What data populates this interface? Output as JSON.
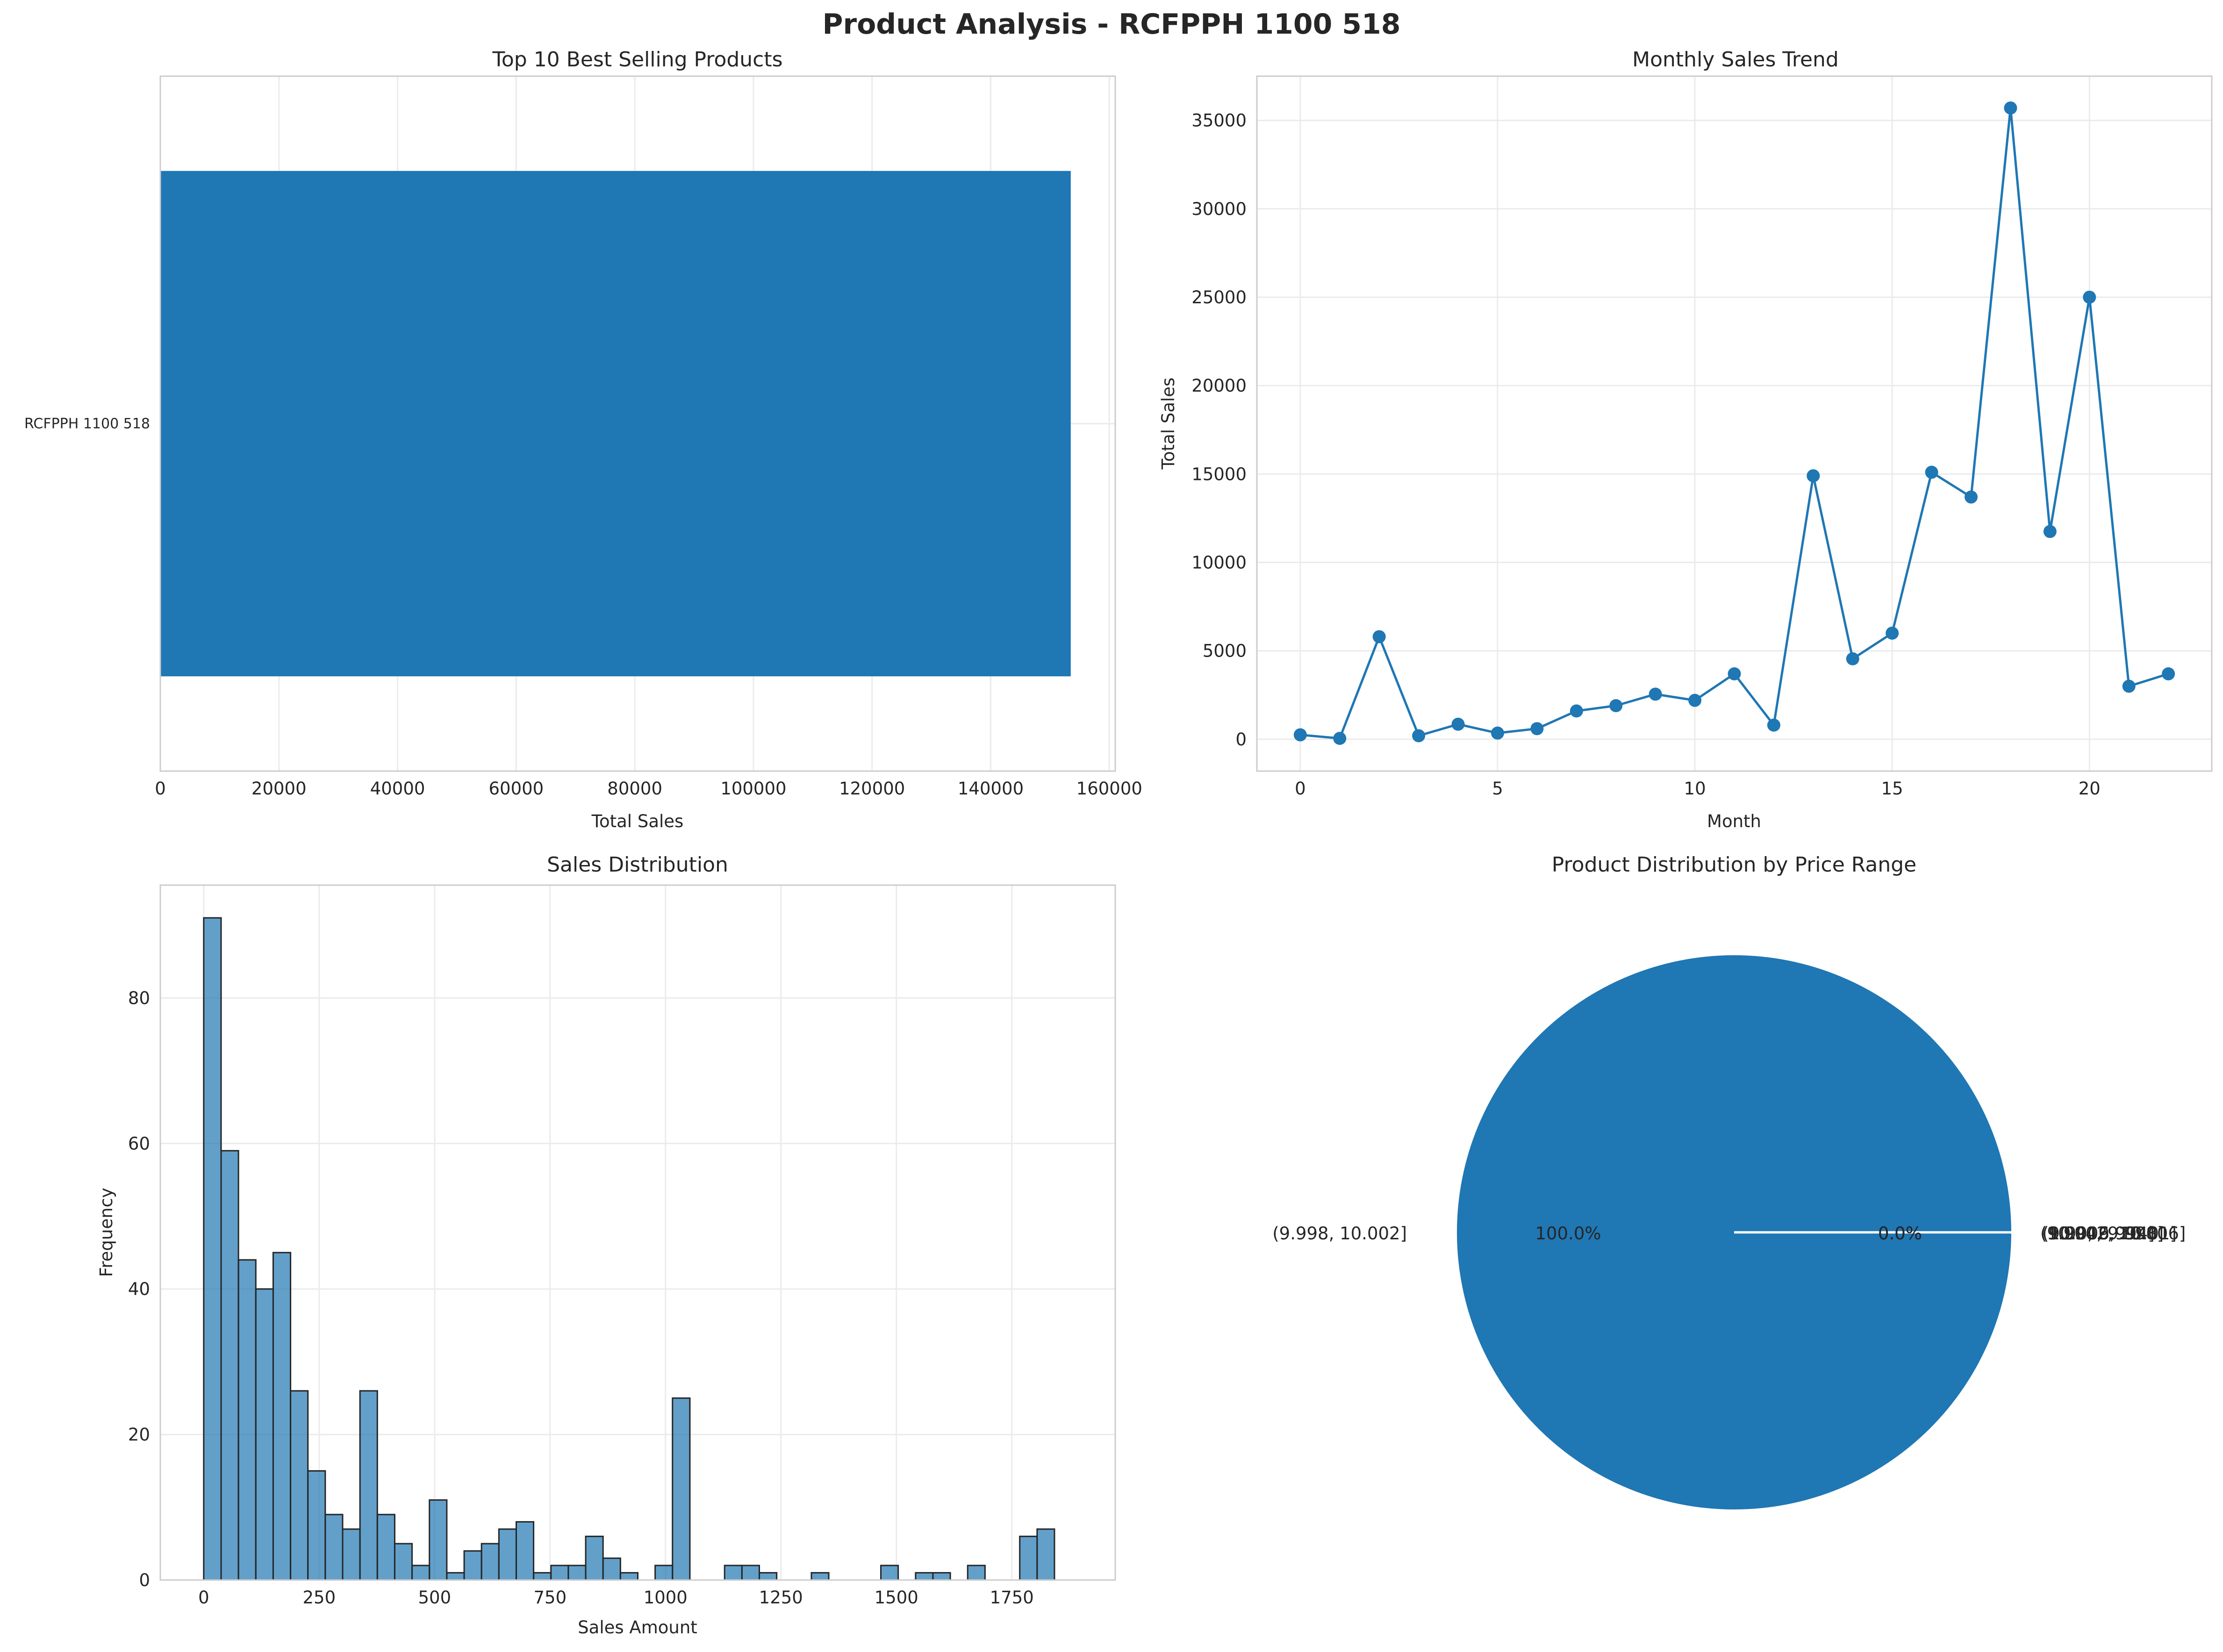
{
  "figure": {
    "title": "Product Analysis - RCFPPH 1100 518"
  },
  "chart_data": [
    {
      "type": "bar",
      "orientation": "horizontal",
      "title": "Top 10 Best Selling Products",
      "xlabel": "Total Sales",
      "ylabel": "",
      "categories": [
        "RCFPPH 1100 518"
      ],
      "values": [
        153500
      ],
      "xlim": [
        0,
        161000
      ],
      "xticks": [
        0,
        20000,
        40000,
        60000,
        80000,
        100000,
        120000,
        140000,
        160000
      ],
      "grid": true,
      "color": "#1f77b4"
    },
    {
      "type": "line",
      "title": "Monthly Sales Trend",
      "xlabel": "Month",
      "ylabel": "Total Sales",
      "x": [
        0,
        1,
        2,
        3,
        4,
        5,
        6,
        7,
        8,
        9,
        10,
        11,
        12,
        13,
        14,
        15,
        16,
        17,
        18,
        19,
        20,
        21,
        22
      ],
      "y": [
        250,
        50,
        5800,
        200,
        850,
        350,
        600,
        1600,
        1900,
        2550,
        2200,
        3700,
        800,
        14900,
        4550,
        6000,
        15100,
        13700,
        35700,
        11750,
        25000,
        3000,
        3700
      ],
      "xlim": [
        -1.1,
        23.1
      ],
      "ylim": [
        -1800,
        37500
      ],
      "xticks": [
        0,
        5,
        10,
        15,
        20
      ],
      "yticks": [
        0,
        5000,
        10000,
        15000,
        20000,
        25000,
        30000,
        35000
      ],
      "markers": true,
      "grid": true,
      "color": "#1f77b4"
    },
    {
      "type": "bar",
      "subtype": "histogram",
      "title": "Sales Distribution",
      "xlabel": "Sales Amount",
      "ylabel": "Frequency",
      "bin_start": 0,
      "bin_width": 37.6,
      "counts": [
        91,
        59,
        44,
        40,
        45,
        26,
        15,
        9,
        7,
        26,
        9,
        5,
        2,
        11,
        1,
        4,
        5,
        7,
        8,
        1,
        2,
        2,
        6,
        3,
        1,
        0,
        2,
        25,
        0,
        0,
        2,
        2,
        1,
        0,
        0,
        1,
        0,
        0,
        0,
        2,
        0,
        1,
        1,
        0,
        2,
        0,
        0,
        6,
        7
      ],
      "xlim": [
        -94,
        1974
      ],
      "ylim": [
        0,
        95.5
      ],
      "xticks": [
        0,
        250,
        500,
        750,
        1000,
        1250,
        1500,
        1750
      ],
      "yticks": [
        0,
        20,
        40,
        60,
        80
      ],
      "grid": true,
      "color": "#1f77b4",
      "edgecolor": "#262626"
    },
    {
      "type": "pie",
      "title": "Product Distribution by Price Range",
      "slices": [
        {
          "label": "(9.998, 10.002]",
          "value": 100.0,
          "pct": "100.0%"
        },
        {
          "label": "(10.002, 10.006]",
          "value": 0.0,
          "pct": "0.0%"
        },
        {
          "label": "(10.006, 10.01]",
          "value": 0.0,
          "pct": "0.0%"
        },
        {
          "label": "(9.994, 9.998]",
          "value": 0.0,
          "pct": "0.0%"
        },
        {
          "label": "(9.99, 9.994]",
          "value": 0.0,
          "pct": "0.0%"
        }
      ],
      "color": "#1f77b4"
    }
  ]
}
